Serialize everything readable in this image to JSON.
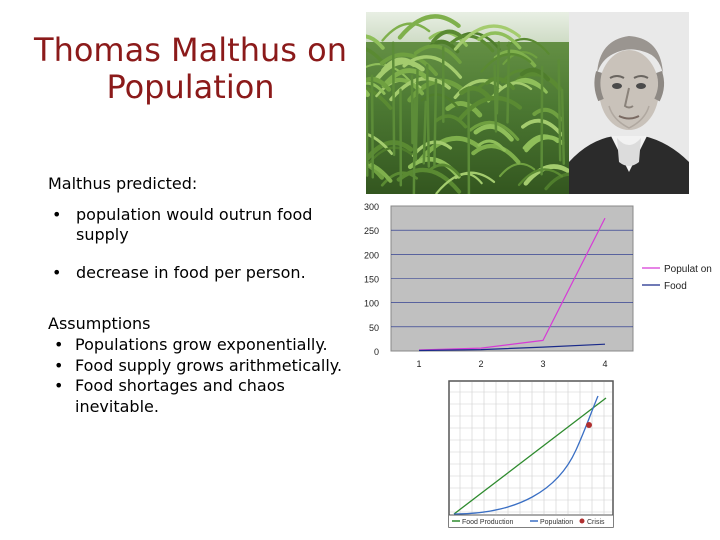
{
  "slide": {
    "title_line1": "Thomas Malthus on",
    "title_line2": "Population",
    "intro": "Malthus predicted:",
    "bullets": [
      "population would outrun food supply",
      "decrease in food per person."
    ],
    "assumptions_heading": "Assumptions",
    "assumptions": [
      "Populations grow exponentially.",
      "Food supply grows arithmetically.",
      "Food shortages and chaos inevitable."
    ]
  },
  "colors": {
    "title": "#8b1a1a",
    "population_line": "#d63bd6",
    "food_line": "#1a2a8a",
    "chart_bg": "#c0c0c0",
    "food_production": "#2e8b2e",
    "population_curve": "#3a6fc4",
    "crisis": "#b03030"
  },
  "images": {
    "corn": "corn-field-photo",
    "portrait": "thomas-malthus-portrait"
  },
  "chart_data": [
    {
      "type": "line",
      "title": "",
      "xlabel": "",
      "ylabel": "",
      "x": [
        1,
        2,
        3,
        4
      ],
      "x_tick_labels": [
        "1",
        "2",
        "3",
        "4"
      ],
      "y_ticks": [
        0,
        50,
        100,
        150,
        200,
        250,
        300
      ],
      "ylim": [
        0,
        300
      ],
      "grid": true,
      "legend_position": "right",
      "series": [
        {
          "name": "Populat on",
          "values": [
            2,
            6,
            22,
            275
          ]
        },
        {
          "name": "Food",
          "values": [
            1,
            3,
            8,
            14
          ]
        }
      ]
    },
    {
      "type": "line",
      "title": "",
      "xlabel": "",
      "ylabel": "",
      "grid": true,
      "legend_position": "bottom",
      "series": [
        {
          "name": "Food Production",
          "shape": "linear"
        },
        {
          "name": "Population",
          "shape": "exponential"
        }
      ],
      "annotations": [
        {
          "label": "Crisis",
          "marker": "intersection"
        }
      ]
    }
  ]
}
